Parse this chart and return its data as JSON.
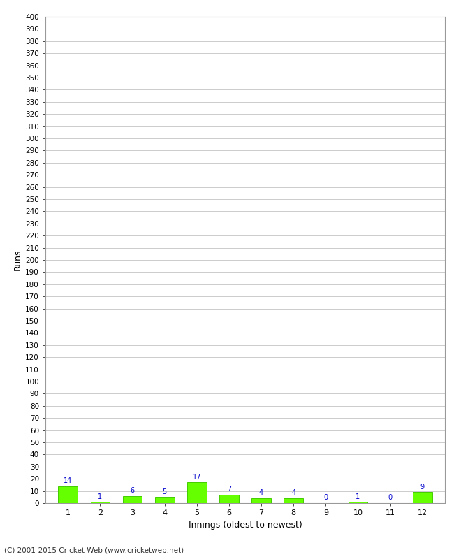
{
  "title": "",
  "xlabel": "Innings (oldest to newest)",
  "ylabel": "Runs",
  "categories": [
    1,
    2,
    3,
    4,
    5,
    6,
    7,
    8,
    9,
    10,
    11,
    12
  ],
  "values": [
    14,
    1,
    6,
    5,
    17,
    7,
    4,
    4,
    0,
    1,
    0,
    9
  ],
  "bar_color": "#66ff00",
  "bar_edge_color": "#44cc00",
  "label_color": "#0000cc",
  "label_fontsize": 7,
  "ylim": [
    0,
    400
  ],
  "background_color": "#ffffff",
  "grid_color": "#cccccc",
  "footer": "(C) 2001-2015 Cricket Web (www.cricketweb.net)"
}
